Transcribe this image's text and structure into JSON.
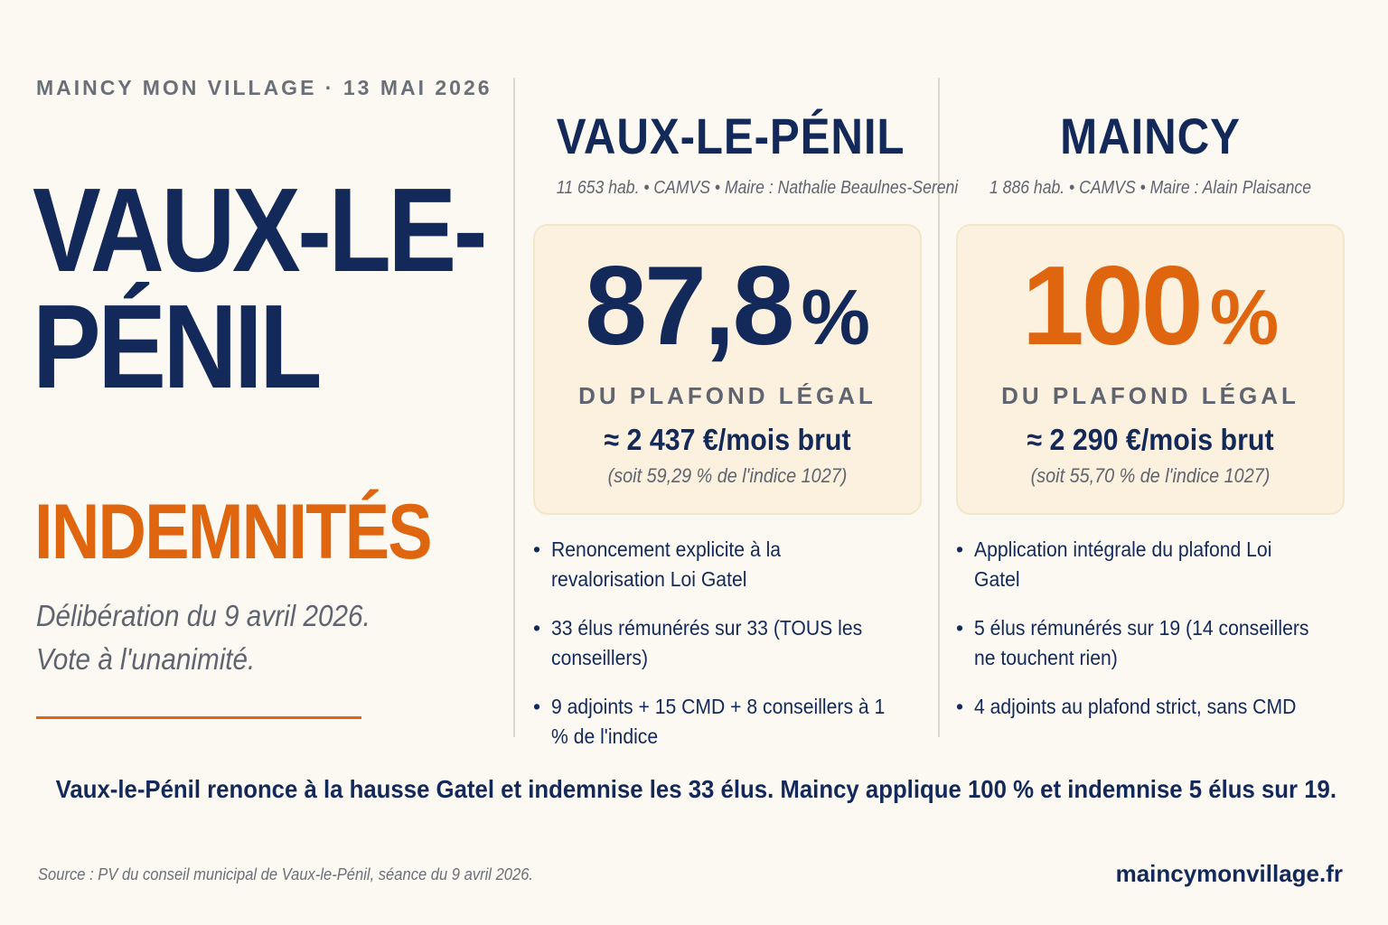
{
  "kicker": "MAINCY MON VILLAGE · 13 MAI 2026",
  "headline": {
    "line1": "VAUX-LE-",
    "line2": "PÉNIL",
    "accent": "INDEMNITÉS"
  },
  "lede": {
    "line1": "Délibération du 9 avril 2026.",
    "line2": "Vote à l'unanimité."
  },
  "colors": {
    "navy": "#13295a",
    "orange": "#e0650f",
    "card_bg": "#fbf1de",
    "page_bg": "#fcf9f2"
  },
  "vaux": {
    "title": "VAUX-LE-PÉNIL",
    "meta": "11 653 hab. • CAMVS • Maire : Nathalie Beaulnes-Sereni",
    "percent": "87,8",
    "percent_sign": "%",
    "plafond": "DU PLAFOND LÉGAL",
    "amount": "≈ 2 437 €/mois brut",
    "indice": "(soit 59,29 % de l'indice 1027)",
    "bullets": [
      "Renoncement explicite à la revalorisation Loi Gatel",
      "33 élus rémunérés sur 33 (TOUS les conseillers)",
      "9 adjoints + 15 CMD + 8 conseillers à 1 % de l'indice"
    ]
  },
  "maincy": {
    "title": "MAINCY",
    "meta": "1 886 hab. • CAMVS • Maire : Alain Plaisance",
    "percent": "100",
    "percent_sign": "%",
    "plafond": "DU PLAFOND LÉGAL",
    "amount": "≈ 2 290 €/mois brut",
    "indice": "(soit 55,70 % de l'indice 1027)",
    "bullets": [
      "Application intégrale du plafond Loi Gatel",
      "5 élus rémunérés sur 19 (14 conseillers ne touchent rien)",
      "4 adjoints au plafond strict, sans CMD"
    ]
  },
  "summary": "Vaux-le-Pénil renonce à la hausse Gatel et indemnise les 33 élus. Maincy applique 100 % et indemnise 5 élus sur 19.",
  "footer": {
    "source": "Source : PV du conseil municipal de Vaux-le-Pénil, séance du 9 avril 2026.",
    "site": "maincymonvillage.fr"
  }
}
